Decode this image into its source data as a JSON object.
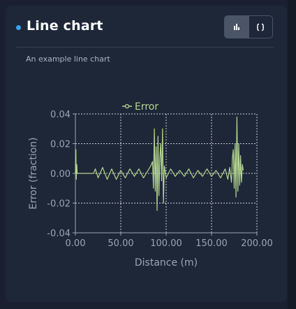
{
  "card": {
    "title": "Line chart",
    "subtitle": "An example line chart",
    "accent_color": "#3aa4ea",
    "toolbar": [
      {
        "name": "bar-chart-icon",
        "active": true
      },
      {
        "name": "code-braces-icon",
        "active": false
      }
    ]
  },
  "chart_data": {
    "type": "line",
    "xlabel": "Distance (m)",
    "ylabel": "Error (fraction)",
    "xlim": [
      0,
      200
    ],
    "ylim": [
      -0.04,
      0.04
    ],
    "x_ticks": [
      "0.00",
      "50.00",
      "100.00",
      "150.00",
      "200.00"
    ],
    "y_ticks": [
      "0.04",
      "0.02",
      "0.00",
      "-0.02",
      "-0.04"
    ],
    "grid": true,
    "legend_placement": "top-center",
    "series": [
      {
        "name": "Error",
        "color": "#b5d68f",
        "x": [
          0,
          0.5,
          1,
          1.5,
          2,
          3,
          5,
          10,
          15,
          20,
          22,
          25,
          30,
          35,
          40,
          45,
          50,
          55,
          60,
          65,
          70,
          75,
          80,
          83,
          85,
          86,
          87,
          88,
          89,
          90,
          91,
          92,
          93,
          94,
          95,
          96,
          97,
          98,
          100,
          105,
          110,
          115,
          120,
          125,
          130,
          135,
          140,
          145,
          150,
          155,
          160,
          165,
          168,
          170,
          172,
          173,
          174,
          175,
          176,
          177,
          178,
          179,
          180,
          181,
          182,
          183,
          184,
          185
        ],
        "y": [
          0,
          0.016,
          -0.004,
          0.006,
          0,
          0,
          0,
          0,
          0,
          0,
          0.003,
          -0.003,
          0.004,
          -0.004,
          0.003,
          -0.004,
          0.002,
          -0.003,
          0.003,
          -0.002,
          0.003,
          -0.003,
          0.002,
          0.005,
          0.008,
          -0.01,
          0.03,
          -0.012,
          0.018,
          -0.025,
          0.025,
          -0.015,
          0.01,
          0.02,
          -0.005,
          0.03,
          -0.02,
          0.005,
          -0.003,
          0.003,
          -0.002,
          0.002,
          -0.002,
          0.003,
          -0.003,
          0.002,
          -0.002,
          0.003,
          -0.002,
          0.002,
          -0.003,
          0.003,
          -0.004,
          0.004,
          -0.006,
          0.01,
          0.016,
          -0.01,
          0.02,
          -0.016,
          0.038,
          -0.012,
          0.02,
          -0.008,
          0.012,
          -0.006,
          0.006,
          0.002
        ]
      }
    ]
  }
}
